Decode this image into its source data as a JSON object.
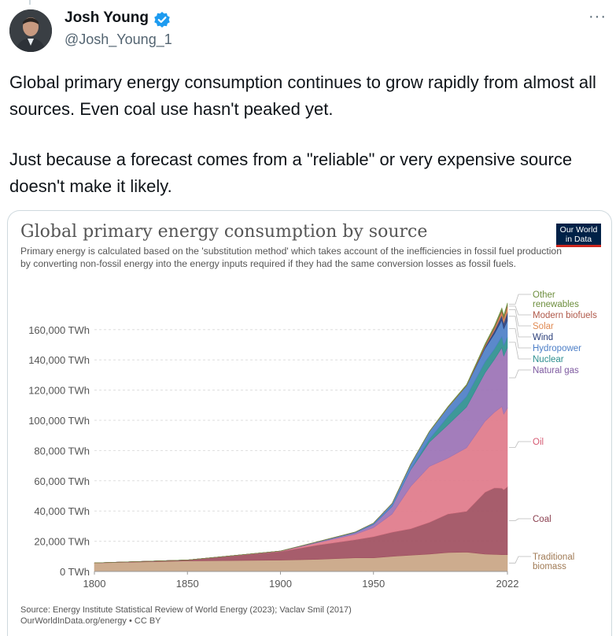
{
  "tweet": {
    "author_name": "Josh Young",
    "handle": "@Josh_Young_1",
    "more_icon": "···",
    "paragraph_1": "Global primary energy consumption continues to grow rapidly from almost all sources. Even coal use hasn't peaked yet.",
    "paragraph_2": "Just because a forecast comes from a \"reliable\" or very expensive source doesn't make it likely."
  },
  "card": {
    "logo_line1": "Our World",
    "logo_line2": "in Data",
    "source_line": "Source: Energy Institute Statistical Review of World Energy (2023); Vaclav Smil (2017)",
    "url_line": "OurWorldInData.org/energy • CC BY"
  },
  "chart_data": {
    "type": "area",
    "title": "Global primary energy consumption by source",
    "subtitle": "Primary energy is calculated based on the 'substitution method' which takes account of the inefficiencies in fossil fuel production by converting non-fossil energy into the energy inputs required if they had the same conversion losses as fossil fuels.",
    "x_ticks": [
      "1800",
      "1850",
      "1900",
      "1950",
      "2022"
    ],
    "y_ticks": [
      "0 TWh",
      "20,000 TWh",
      "40,000 TWh",
      "60,000 TWh",
      "80,000 TWh",
      "100,000 TWh",
      "120,000 TWh",
      "140,000 TWh",
      "160,000 TWh"
    ],
    "ylim": [
      0,
      175000
    ],
    "xlim": [
      1800,
      2022
    ],
    "grid": true,
    "legend_position": "right",
    "x": [
      1800,
      1850,
      1900,
      1920,
      1940,
      1950,
      1960,
      1970,
      1980,
      1990,
      2000,
      2010,
      2015,
      2019,
      2020,
      2022
    ],
    "series": [
      {
        "name": "Traditional biomass",
        "color": "#c9a584",
        "values": [
          5600,
          7000,
          7500,
          8000,
          9000,
          9000,
          10000,
          10800,
          11500,
          12500,
          12800,
          11500,
          11300,
          11100,
          11100,
          11100
        ]
      },
      {
        "name": "Coal",
        "color": "#9f4f5f",
        "values": [
          100,
          600,
          5700,
          9500,
          12000,
          14000,
          16000,
          17500,
          21000,
          25500,
          27000,
          41000,
          44000,
          44000,
          43000,
          45000
        ]
      },
      {
        "name": "Oil",
        "color": "#e07a8a",
        "values": [
          0,
          0,
          200,
          1500,
          3500,
          6000,
          12000,
          28000,
          37000,
          37000,
          42000,
          47000,
          50000,
          54000,
          50000,
          52000
        ]
      },
      {
        "name": "Natural gas",
        "color": "#9b72b5",
        "values": [
          0,
          0,
          100,
          500,
          1000,
          2000,
          5000,
          11000,
          16000,
          22000,
          27000,
          32000,
          35000,
          39000,
          38500,
          40000
        ]
      },
      {
        "name": "Nuclear",
        "color": "#2e8f8f",
        "values": [
          0,
          0,
          0,
          0,
          0,
          0,
          0,
          200,
          2000,
          5500,
          7000,
          7200,
          6900,
          7300,
          7000,
          7000
        ]
      },
      {
        "name": "Hydropower",
        "color": "#4d7fc7",
        "values": [
          0,
          0,
          0,
          200,
          500,
          1000,
          2000,
          3500,
          5000,
          6000,
          7000,
          9000,
          10000,
          10900,
          11100,
          11000
        ]
      },
      {
        "name": "Wind",
        "color": "#2b3f7a",
        "values": [
          0,
          0,
          0,
          0,
          0,
          0,
          0,
          0,
          0,
          0,
          100,
          900,
          2200,
          3500,
          4000,
          5500
        ]
      },
      {
        "name": "Solar",
        "color": "#e08a52",
        "values": [
          0,
          0,
          0,
          0,
          0,
          0,
          0,
          0,
          0,
          0,
          0,
          200,
          1000,
          1900,
          2300,
          3400
        ]
      },
      {
        "name": "Modern biofuels",
        "color": "#b0594a",
        "values": [
          0,
          0,
          0,
          0,
          0,
          0,
          0,
          0,
          0,
          200,
          250,
          900,
          1000,
          1100,
          1000,
          1100
        ]
      },
      {
        "name": "Other renewables",
        "color": "#6e8f3f",
        "values": [
          0,
          0,
          0,
          0,
          0,
          0,
          0,
          100,
          200,
          400,
          500,
          900,
          1100,
          1500,
          1500,
          1600
        ]
      }
    ],
    "legend": [
      {
        "text": "Other",
        "color": "#6e8f3f"
      },
      {
        "text": "renewables",
        "color": "#6e8f3f"
      },
      {
        "text": "Modern biofuels",
        "color": "#b0594a"
      },
      {
        "text": "Solar",
        "color": "#e08a52"
      },
      {
        "text": "Wind",
        "color": "#2b3f7a"
      },
      {
        "text": "Hydropower",
        "color": "#4d7fc7"
      },
      {
        "text": "Nuclear",
        "color": "#2e8f8f"
      },
      {
        "text": "Natural gas",
        "color": "#7e5aa0"
      },
      {
        "text": "Oil",
        "color": "#d65a73"
      },
      {
        "text": "Coal",
        "color": "#8a3f4f"
      },
      {
        "text": "Traditional",
        "color": "#a07a55"
      },
      {
        "text": "biomass",
        "color": "#a07a55"
      }
    ]
  }
}
